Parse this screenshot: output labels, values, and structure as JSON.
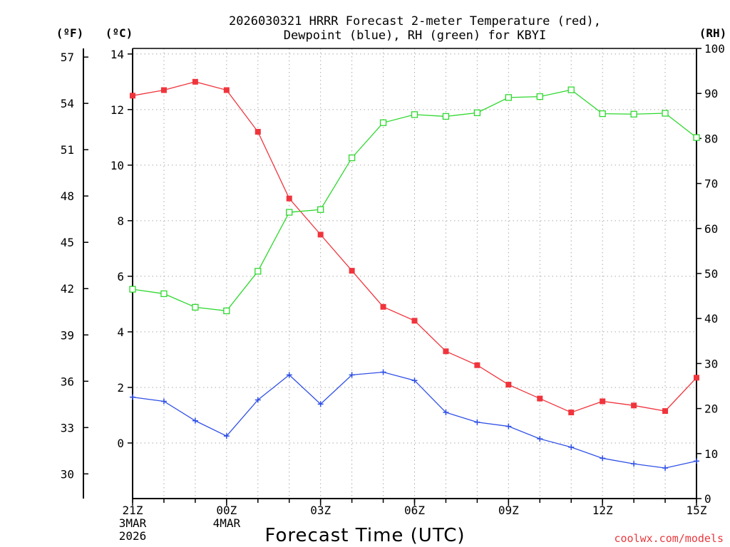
{
  "chart_data": {
    "type": "line",
    "title_line1": "2026030321 HRRR Forecast 2-meter Temperature (red),",
    "title_line2": "Dewpoint (blue), RH (green) for KBYI",
    "units": {
      "f": "(ºF)",
      "c": "(ºC)",
      "rh": "(RH)"
    },
    "xlabel": "Forecast Time (UTC)",
    "credit": "coolwx.com/models",
    "hours": [
      0,
      1,
      2,
      3,
      4,
      5,
      6,
      7,
      8,
      9,
      10,
      11,
      12,
      13,
      14,
      15,
      16,
      17,
      18
    ],
    "x_ticks": [
      {
        "hour": 0,
        "lines": [
          "21Z",
          "3MAR",
          "2026"
        ]
      },
      {
        "hour": 3,
        "lines": [
          "00Z",
          "4MAR"
        ]
      },
      {
        "hour": 6,
        "lines": [
          "03Z"
        ]
      },
      {
        "hour": 9,
        "lines": [
          "06Z"
        ]
      },
      {
        "hour": 12,
        "lines": [
          "09Z"
        ]
      },
      {
        "hour": 15,
        "lines": [
          "12Z"
        ]
      },
      {
        "hour": 18,
        "lines": [
          "15Z"
        ]
      }
    ],
    "celsius_axis": {
      "min": -2,
      "max": 14.2,
      "ticks": [
        0,
        2,
        4,
        6,
        8,
        10,
        12,
        14
      ]
    },
    "fahrenheit_axis": {
      "ticks": [
        30,
        33,
        36,
        39,
        42,
        45,
        48,
        51,
        54,
        57
      ]
    },
    "rh_axis": {
      "min": 0,
      "max": 100,
      "ticks": [
        0,
        10,
        20,
        30,
        40,
        50,
        60,
        70,
        80,
        90,
        100
      ]
    },
    "series": [
      {
        "name": "Temperature",
        "unit": "C",
        "color": "#f0343c",
        "marker": "filled-square",
        "values": [
          12.5,
          12.7,
          13.0,
          12.7,
          11.2,
          8.8,
          7.5,
          6.2,
          4.9,
          4.4,
          3.3,
          2.8,
          2.1,
          1.6,
          1.1,
          1.5,
          1.35,
          1.15,
          2.35
        ]
      },
      {
        "name": "Dewpoint",
        "unit": "C",
        "color": "#3050e6",
        "marker": "plus",
        "values": [
          1.65,
          1.5,
          0.8,
          0.25,
          1.55,
          2.45,
          1.4,
          2.45,
          2.55,
          2.25,
          1.1,
          0.75,
          0.6,
          0.15,
          -0.15,
          -0.55,
          -0.75,
          -0.9,
          -0.65
        ]
      },
      {
        "name": "RH",
        "unit": "%",
        "color": "#2ed82e",
        "marker": "open-square",
        "values": [
          46.5,
          45.5,
          42.5,
          41.7,
          50.5,
          63.6,
          64.2,
          75.7,
          83.5,
          85.3,
          84.9,
          85.7,
          89.1,
          89.3,
          90.8,
          85.5,
          85.4,
          85.6,
          80.2
        ]
      }
    ]
  }
}
